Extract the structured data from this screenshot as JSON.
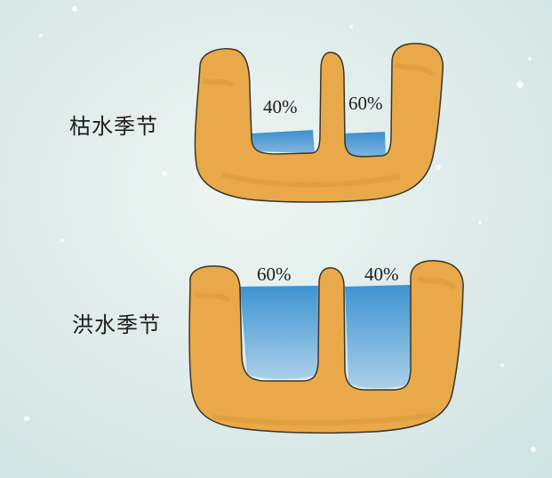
{
  "dry_season": {
    "label": "枯水季节",
    "left_channel_percent": "40%",
    "right_channel_percent": "60%",
    "left_channel_share": 0.4,
    "right_channel_share": 0.6
  },
  "flood_season": {
    "label": "洪水季节",
    "left_channel_percent": "60%",
    "right_channel_percent": "40%",
    "left_channel_share": 0.6,
    "right_channel_share": 0.4
  },
  "colors": {
    "background": "#dfecea",
    "embankment": "#e9a94a",
    "water": "#4f9fd6",
    "outline": "#3a3428"
  }
}
